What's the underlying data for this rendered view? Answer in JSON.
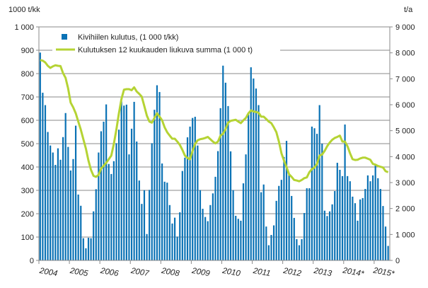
{
  "chart_data": {
    "type": "bar+line",
    "left_axis_title": "1000 t/kk",
    "right_axis_title": "t/a",
    "ylim_left": [
      0,
      1000
    ],
    "ylim_right": [
      0,
      9000
    ],
    "left_ticks": [
      "0",
      "100",
      "200",
      "300",
      "400",
      "500",
      "600",
      "700",
      "800",
      "900",
      "1 000"
    ],
    "right_ticks": [
      "0",
      "1 000",
      "2 000",
      "3 000",
      "4 000",
      "5 000",
      "6 000",
      "7 000",
      "8 000",
      "9 000"
    ],
    "year_labels": [
      "2004",
      "2005",
      "2006",
      "2007",
      "2008",
      "2009",
      "2010",
      "2011",
      "2012",
      "2013",
      "2014*",
      "2015*"
    ],
    "grid": true,
    "legend_position": "top-left",
    "colors": {
      "bars": "#0A72B5",
      "line": "#B5D334",
      "grid": "#8a8a8a"
    },
    "series": [
      {
        "name": "Kivihiilen kulutus, (1 000 t/kk)",
        "type": "bar",
        "axis": "left",
        "values": [
          890,
          718,
          665,
          550,
          492,
          462,
          409,
          480,
          431,
          528,
          631,
          486,
          385,
          434,
          577,
          282,
          234,
          95,
          52,
          97,
          95,
          210,
          305,
          462,
          553,
          594,
          668,
          413,
          370,
          425,
          502,
          560,
          681,
          663,
          667,
          454,
          564,
          679,
          509,
          342,
          242,
          301,
          113,
          302,
          502,
          645,
          750,
          721,
          415,
          337,
          333,
          237,
          158,
          183,
          102,
          206,
          383,
          440,
          527,
          573,
          610,
          615,
          492,
          301,
          221,
          186,
          168,
          237,
          287,
          358,
          468,
          652,
          834,
          761,
          661,
          467,
          301,
          191,
          178,
          170,
          330,
          454,
          625,
          827,
          779,
          736,
          665,
          292,
          325,
          145,
          65,
          109,
          150,
          255,
          319,
          345,
          443,
          512,
          368,
          276,
          182,
          91,
          65,
          91,
          203,
          309,
          309,
          573,
          566,
          542,
          665,
          500,
          213,
          190,
          210,
          240,
          297,
          418,
          388,
          361,
          582,
          361,
          339,
          273,
          245,
          170,
          261,
          267,
          306,
          364,
          339,
          364,
          406,
          352,
          306,
          233,
          145,
          62
        ]
      },
      {
        "name": "Kulutuksen 12 kuukauden liukuva summa (1 000 t)",
        "type": "line",
        "axis": "right",
        "values": [
          7720,
          7700,
          7630,
          7500,
          7420,
          7480,
          7520,
          7500,
          7490,
          7220,
          7035,
          6630,
          6080,
          5900,
          5670,
          5350,
          5040,
          4670,
          4310,
          3850,
          3490,
          3260,
          3220,
          3300,
          3540,
          3650,
          3760,
          3900,
          4040,
          4490,
          5040,
          5670,
          6220,
          6580,
          6600,
          6600,
          6560,
          6670,
          6510,
          6420,
          6310,
          5950,
          5580,
          5350,
          5310,
          5490,
          5670,
          5540,
          5400,
          5130,
          4940,
          4810,
          4690,
          4690,
          4580,
          4450,
          4260,
          4040,
          3950,
          3900,
          4220,
          4490,
          4630,
          4670,
          4690,
          4720,
          4760,
          4670,
          4580,
          4510,
          4580,
          4810,
          4880,
          5060,
          5310,
          5380,
          5400,
          5420,
          5350,
          5290,
          5400,
          5490,
          5670,
          5780,
          5740,
          5720,
          5690,
          5540,
          5540,
          5450,
          5350,
          5290,
          5130,
          4940,
          4580,
          4130,
          3850,
          3600,
          3320,
          3220,
          3100,
          3080,
          3050,
          3100,
          3170,
          3200,
          3400,
          3520,
          3580,
          3720,
          4040,
          4080,
          4220,
          4400,
          4540,
          4650,
          4720,
          4760,
          4810,
          4580,
          4580,
          4400,
          4130,
          3900,
          3870,
          3880,
          3930,
          3960,
          3960,
          3920,
          3880,
          3720,
          3690,
          3640,
          3610,
          3580,
          3440,
          3400
        ]
      }
    ]
  }
}
